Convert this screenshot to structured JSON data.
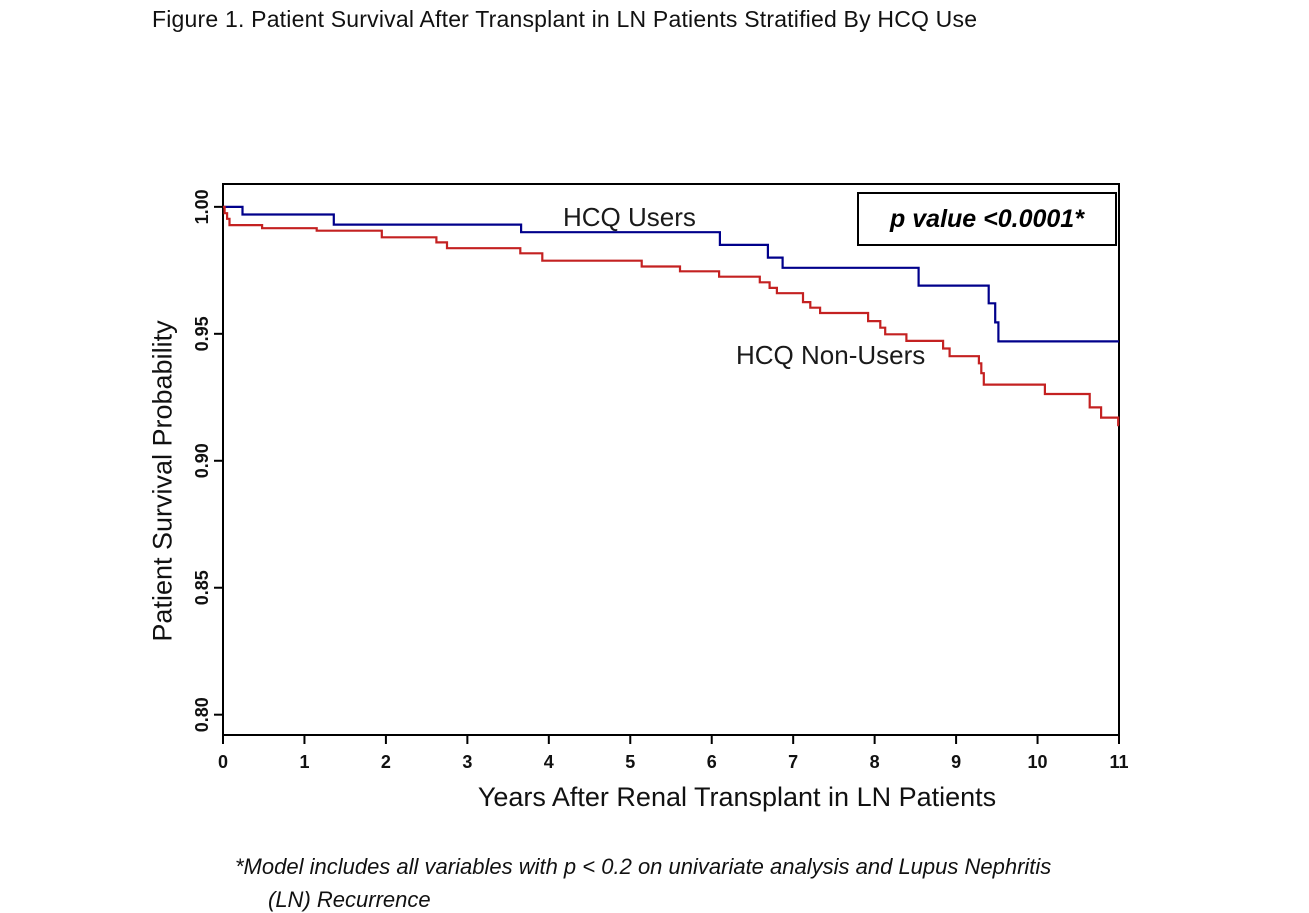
{
  "title": "Figure 1. Patient Survival After Transplant in LN Patients Stratified By HCQ Use",
  "annotation": {
    "p_value_label": "p value <0.0001*"
  },
  "footnote": {
    "line1": "*Model includes all variables with p < 0.2 on univariate analysis and Lupus Nephritis",
    "line2": "(LN) Recurrence"
  },
  "colors": {
    "hcq_users": "#00008B",
    "hcq_non_users": "#C42121",
    "axis": "#000000"
  },
  "chart_data": {
    "type": "line",
    "subtype": "kaplan-meier-step",
    "title": "Figure 1. Patient Survival After Transplant in LN Patients Stratified By HCQ Use",
    "xlabel": "Years After Renal Transplant in LN Patients",
    "ylabel": "Patient Survival Probability",
    "xlim": [
      0,
      11
    ],
    "ylim": [
      0.792,
      1.009
    ],
    "x_ticks": [
      0,
      1,
      2,
      3,
      4,
      5,
      6,
      7,
      8,
      9,
      10,
      11
    ],
    "y_ticks": [
      "1.00",
      "0.95",
      "0.90",
      "0.85",
      "0.80"
    ],
    "y_tick_values": [
      1.0,
      0.95,
      0.9,
      0.85,
      0.8
    ],
    "grid": false,
    "frame": true,
    "legend_position": "inline-labels",
    "annotation": "p value <0.0001*",
    "series": [
      {
        "name": "HCQ Users",
        "color": "#00008B",
        "steps": [
          [
            0,
            1.0
          ],
          [
            0.24,
            0.997
          ],
          [
            1.36,
            0.993
          ],
          [
            3.66,
            0.99
          ],
          [
            6.1,
            0.985
          ],
          [
            6.69,
            0.98
          ],
          [
            6.87,
            0.976
          ],
          [
            8.54,
            0.969
          ],
          [
            9.4,
            0.962
          ],
          [
            9.48,
            0.9545
          ],
          [
            9.52,
            0.947
          ]
        ],
        "final_value_at_11_years": 0.947
      },
      {
        "name": "HCQ Non-Users",
        "color": "#C42121",
        "steps": [
          [
            0,
            1.0
          ],
          [
            0.02,
            0.9975
          ],
          [
            0.05,
            0.9953
          ],
          [
            0.08,
            0.9928
          ],
          [
            0.48,
            0.9916
          ],
          [
            1.15,
            0.9906
          ],
          [
            1.95,
            0.988
          ],
          [
            2.62,
            0.986
          ],
          [
            2.75,
            0.9837
          ],
          [
            3.65,
            0.9817
          ],
          [
            3.92,
            0.9788
          ],
          [
            5.14,
            0.9765
          ],
          [
            5.61,
            0.9746
          ],
          [
            6.09,
            0.9725
          ],
          [
            6.59,
            0.9703
          ],
          [
            6.71,
            0.9681
          ],
          [
            6.8,
            0.966
          ],
          [
            7.12,
            0.9625
          ],
          [
            7.21,
            0.9603
          ],
          [
            7.33,
            0.9582
          ],
          [
            7.92,
            0.955
          ],
          [
            8.07,
            0.9524
          ],
          [
            8.13,
            0.9498
          ],
          [
            8.39,
            0.9472
          ],
          [
            8.84,
            0.9442
          ],
          [
            8.92,
            0.9412
          ],
          [
            9.28,
            0.9384
          ],
          [
            9.31,
            0.9345
          ],
          [
            9.34,
            0.93
          ],
          [
            10.09,
            0.9263
          ],
          [
            10.64,
            0.921
          ],
          [
            10.78,
            0.917
          ],
          [
            10.99,
            0.914
          ]
        ],
        "final_value_at_11_years": 0.914
      }
    ]
  }
}
